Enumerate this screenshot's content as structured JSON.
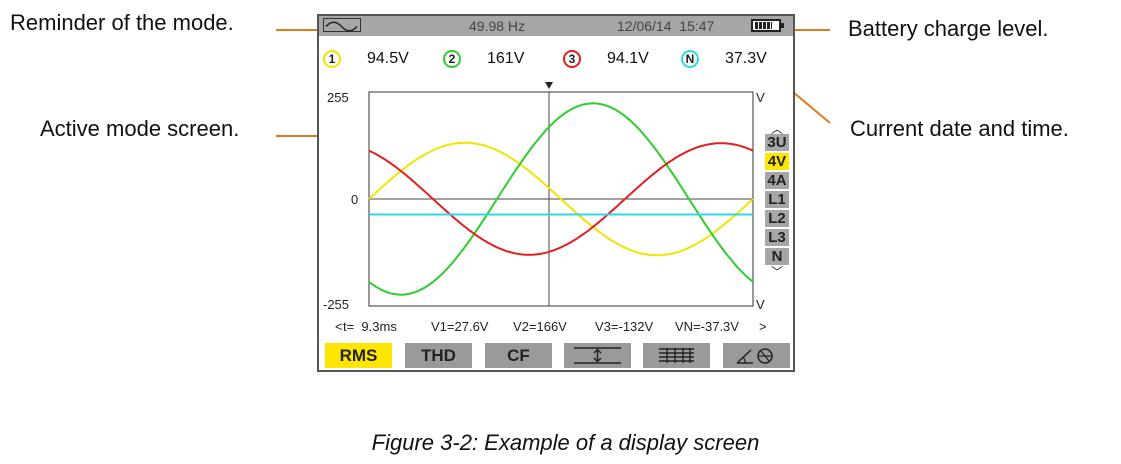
{
  "callouts": {
    "mode": "Reminder of the mode.",
    "active_screen": "Active mode screen.",
    "battery": "Battery charge level.",
    "datetime": "Current date and time."
  },
  "status_bar": {
    "mode_icon": "sine-wave-icon",
    "frequency": "49.98 Hz",
    "datetime": "12/06/14  15:47",
    "battery_icon": "battery-icon",
    "battery_level": 0.8
  },
  "channels": [
    {
      "label": "1",
      "value": "94.5V",
      "color": "#f2e300"
    },
    {
      "label": "2",
      "value": "161V",
      "color": "#2fcc2f"
    },
    {
      "label": "3",
      "value": "94.1V",
      "color": "#e02020"
    },
    {
      "label": "N",
      "value": "37.3V",
      "color": "#33d6e6"
    }
  ],
  "plot": {
    "y_max_label": "255",
    "y_zero_label": "0",
    "y_min_label": "-255",
    "unit_top": "V",
    "unit_bottom": "V",
    "cursor_icon": "cursor-marker-icon"
  },
  "chart_data": {
    "type": "line",
    "ylim": [
      -255,
      255
    ],
    "series": [
      {
        "name": "1",
        "color": "#f2e300",
        "amplitude": 134,
        "phase_deg": 0,
        "offset": 0
      },
      {
        "name": "2",
        "color": "#2fcc2f",
        "amplitude": 228,
        "phase_deg": -120,
        "offset": 0
      },
      {
        "name": "3",
        "color": "#e02020",
        "amplitude": 133,
        "phase_deg": 120,
        "offset": 0
      },
      {
        "name": "N",
        "color": "#33d6e6",
        "amplitude": 0,
        "phase_deg": 0,
        "offset": -37
      }
    ]
  },
  "sidebar": {
    "up_icon": "chevron-up-icon",
    "down_icon": "chevron-down-icon",
    "items": [
      {
        "label": "3U",
        "active": false
      },
      {
        "label": "4V",
        "active": true
      },
      {
        "label": "4A",
        "active": false
      },
      {
        "label": "L1",
        "active": false
      },
      {
        "label": "L2",
        "active": false
      },
      {
        "label": "L3",
        "active": false
      },
      {
        "label": "N",
        "active": false
      }
    ]
  },
  "cursor": {
    "left_arrow": "<",
    "t": "t=  9.3ms",
    "v1": "V1=27.6V",
    "v2": "V2=166V",
    "v3": "V3=-132V",
    "vn": "VN=-37.3V",
    "right_arrow": ">"
  },
  "tabs": [
    {
      "label": "RMS",
      "active": true
    },
    {
      "label": "THD",
      "active": false
    },
    {
      "label": "CF",
      "active": false
    },
    {
      "label": "",
      "icon": "min-max-icon",
      "active": false
    },
    {
      "label": "",
      "icon": "table-icon",
      "active": false
    },
    {
      "label": "",
      "icon": "phasor-icon",
      "active": false
    }
  ],
  "caption": "Figure 3-2: Example of a display screen"
}
